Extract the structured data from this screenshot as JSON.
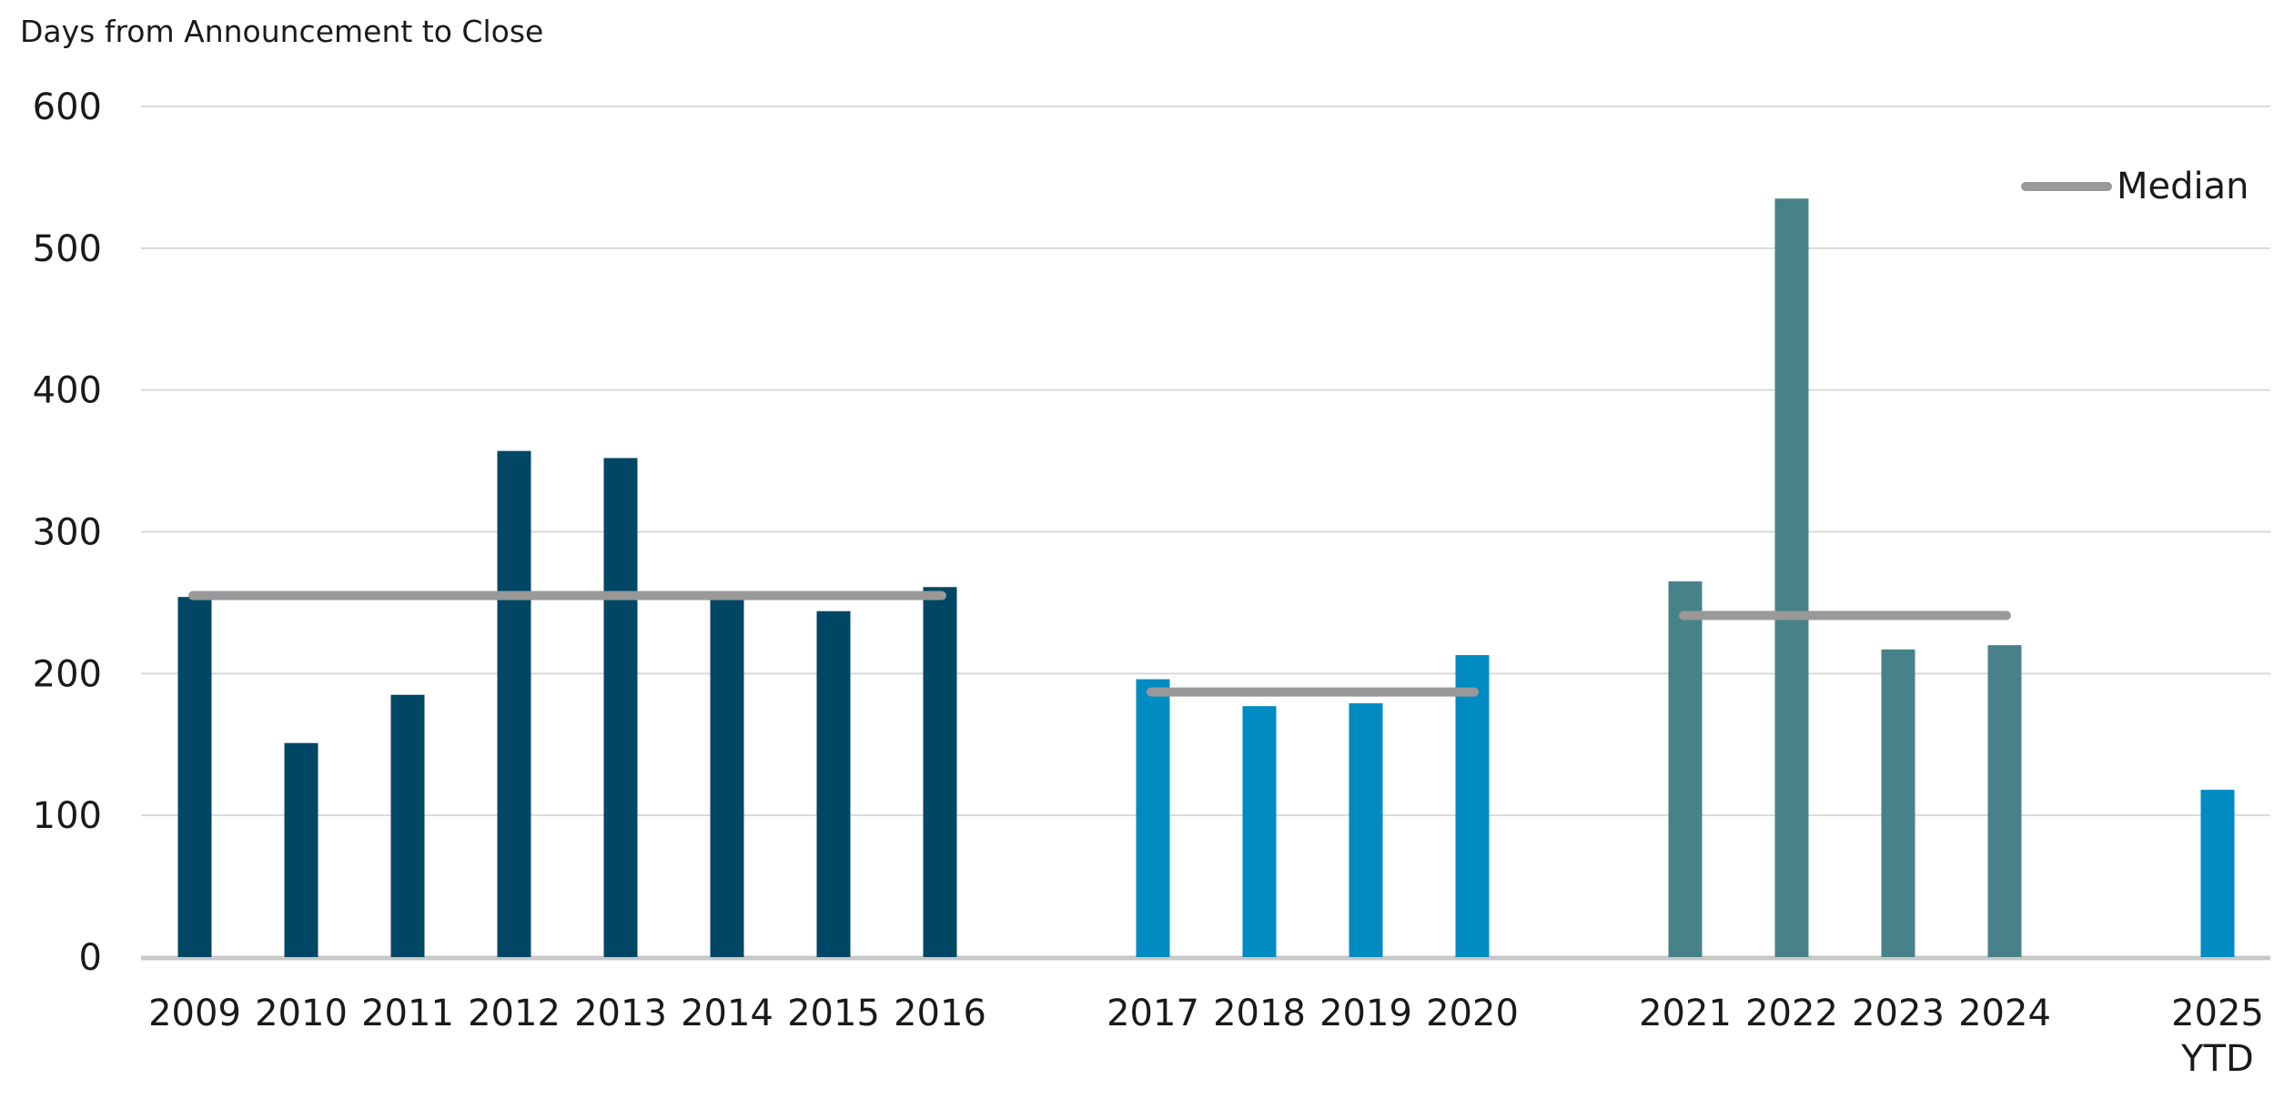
{
  "chart_data": {
    "type": "bar",
    "ylabel": "Days from Announcement to Close",
    "ylim": [
      0,
      600
    ],
    "yticks": [
      0,
      100,
      200,
      300,
      400,
      500,
      600
    ],
    "grid": true,
    "legend": {
      "label": "Median",
      "position": "top-right"
    },
    "colors": {
      "group1": "#004766",
      "group2": "#008bc2",
      "group3": "#478289",
      "median": "#999999",
      "grid": "#d9d9d9",
      "axis": "#c8c8c8"
    },
    "groups": [
      {
        "years": [
          "2009",
          "2010",
          "2011",
          "2012",
          "2013",
          "2014",
          "2015",
          "2016"
        ],
        "values": [
          254,
          151,
          185,
          357,
          352,
          253,
          244,
          261
        ],
        "median": 255,
        "color": "#004766"
      },
      {
        "years": [
          "2017",
          "2018",
          "2019",
          "2020"
        ],
        "values": [
          196,
          177,
          179,
          213
        ],
        "median": 187,
        "color": "#008bc2"
      },
      {
        "years": [
          "2021",
          "2022",
          "2023",
          "2024"
        ],
        "values": [
          265,
          535,
          217,
          220
        ],
        "median": 241,
        "color": "#478289"
      },
      {
        "years": [
          "2025 YTD"
        ],
        "values": [
          118
        ],
        "color": "#008bc2"
      }
    ]
  }
}
